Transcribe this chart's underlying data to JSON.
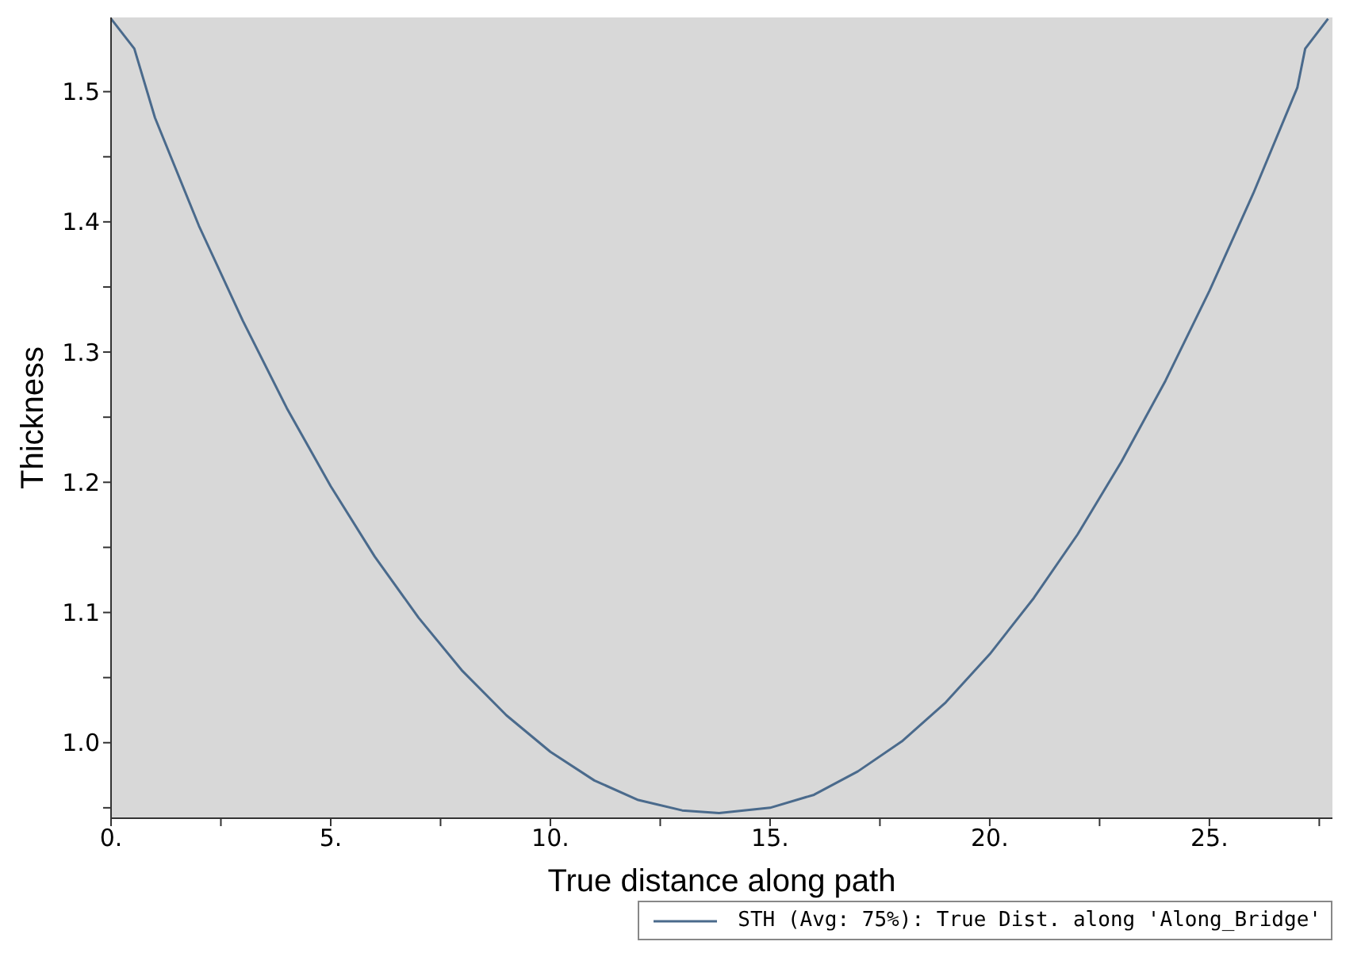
{
  "chart_data": {
    "type": "line",
    "xlabel": "True distance along path",
    "ylabel": "Thickness",
    "xlim": [
      0,
      27.8
    ],
    "ylim": [
      0.942,
      1.557
    ],
    "xticks": [
      {
        "value": 0,
        "label": "0."
      },
      {
        "value": 2.5,
        "label": null
      },
      {
        "value": 5,
        "label": "5."
      },
      {
        "value": 7.5,
        "label": null
      },
      {
        "value": 10,
        "label": "10."
      },
      {
        "value": 12.5,
        "label": null
      },
      {
        "value": 15,
        "label": "15."
      },
      {
        "value": 17.5,
        "label": null
      },
      {
        "value": 20,
        "label": "20."
      },
      {
        "value": 22.5,
        "label": null
      },
      {
        "value": 25,
        "label": "25."
      },
      {
        "value": 27.5,
        "label": null
      }
    ],
    "yticks": [
      {
        "value": 0.95,
        "label": null
      },
      {
        "value": 1.0,
        "label": "1.0"
      },
      {
        "value": 1.05,
        "label": null
      },
      {
        "value": 1.1,
        "label": "1.1"
      },
      {
        "value": 1.15,
        "label": null
      },
      {
        "value": 1.2,
        "label": "1.2"
      },
      {
        "value": 1.25,
        "label": null
      },
      {
        "value": 1.3,
        "label": "1.3"
      },
      {
        "value": 1.35,
        "label": null
      },
      {
        "value": 1.4,
        "label": "1.4"
      },
      {
        "value": 1.45,
        "label": null
      },
      {
        "value": 1.5,
        "label": "1.5"
      }
    ],
    "grid": false,
    "legend": "bottom right",
    "marker": "none",
    "line_style": "solid",
    "series": [
      {
        "name": "STH (Avg: 75%): True Dist. along 'Along_Bridge'",
        "color": "#4a6a8c",
        "x": [
          0,
          0.53,
          1,
          2,
          3,
          4,
          5,
          6,
          7,
          8,
          9,
          10,
          11,
          12,
          13,
          13.84,
          15,
          16,
          17,
          18,
          19,
          20,
          21,
          22,
          23,
          24,
          25,
          26,
          27,
          27.18,
          27.7
        ],
        "values": [
          1.556,
          1.533,
          1.48,
          1.397,
          1.324,
          1.257,
          1.197,
          1.143,
          1.096,
          1.055,
          1.021,
          0.993,
          0.971,
          0.956,
          0.948,
          0.946,
          0.95,
          0.96,
          0.978,
          1.001,
          1.031,
          1.068,
          1.111,
          1.16,
          1.216,
          1.278,
          1.347,
          1.422,
          1.503,
          1.533,
          1.556
        ]
      }
    ]
  }
}
